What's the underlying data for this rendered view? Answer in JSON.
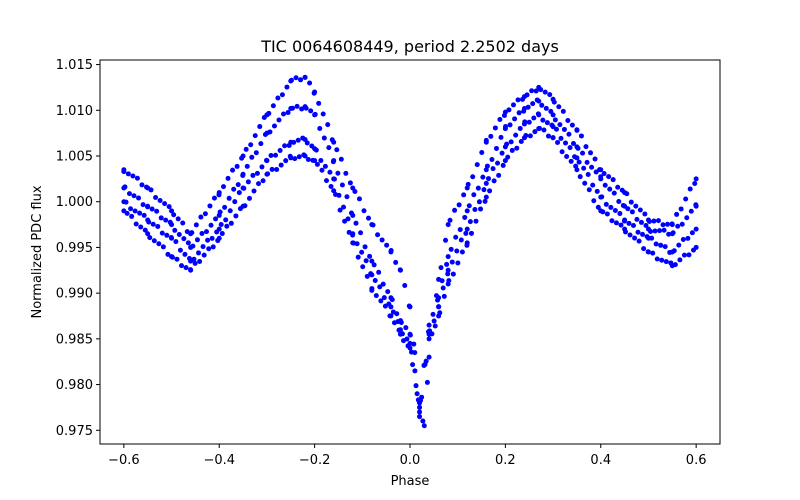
{
  "chart_data": {
    "type": "scatter",
    "title": "TIC 0064608449, period 2.2502 days",
    "xlabel": "Phase",
    "ylabel": "Normalized PDC flux",
    "xlim": [
      -0.65,
      0.65
    ],
    "ylim": [
      0.9735,
      1.0155
    ],
    "xticks": [
      -0.6,
      -0.4,
      -0.2,
      0.0,
      0.2,
      0.4,
      0.6
    ],
    "xtick_labels": [
      "−0.6",
      "−0.4",
      "−0.2",
      "0.0",
      "0.2",
      "0.4",
      "0.6"
    ],
    "yticks": [
      0.975,
      0.98,
      0.985,
      0.99,
      0.995,
      1.0,
      1.005,
      1.01,
      1.015
    ],
    "ytick_labels": [
      "0.975",
      "0.980",
      "0.985",
      "0.990",
      "0.995",
      "1.000",
      "1.005",
      "1.010",
      "1.015"
    ],
    "grid": false,
    "marker_color": "#0000ff",
    "series": [
      {
        "x": [
          -0.6,
          -0.55,
          -0.5,
          -0.46,
          -0.4,
          -0.35,
          -0.3,
          -0.25,
          -0.22,
          -0.2,
          -0.16,
          -0.12,
          -0.08,
          -0.04,
          -0.02,
          0.0,
          0.01,
          0.02,
          0.03,
          0.04,
          0.06,
          0.08,
          0.12,
          0.16,
          0.2,
          0.24,
          0.27,
          0.3,
          0.35,
          0.4,
          0.45,
          0.5,
          0.55,
          0.6
        ],
        "values": [
          1.0035,
          1.0015,
          0.999,
          0.9965,
          1.001,
          1.005,
          1.0095,
          1.0132,
          1.0136,
          1.012,
          1.0065,
          1.0015,
          0.9975,
          0.9945,
          0.9925,
          0.9885,
          0.9835,
          0.9765,
          0.9755,
          0.983,
          0.9915,
          0.9975,
          1.0015,
          1.0065,
          1.0098,
          1.0115,
          1.0125,
          1.0112,
          1.0078,
          1.0035,
          1.001,
          0.998,
          0.9975,
          1.0025
        ]
      },
      {
        "x": [
          -0.6,
          -0.55,
          -0.5,
          -0.46,
          -0.4,
          -0.35,
          -0.3,
          -0.25,
          -0.22,
          -0.2,
          -0.16,
          -0.12,
          -0.08,
          -0.04,
          -0.02,
          0.0,
          0.02,
          0.04,
          0.06,
          0.08,
          0.12,
          0.16,
          0.2,
          0.24,
          0.27,
          0.3,
          0.35,
          0.4,
          0.45,
          0.5,
          0.55,
          0.6
        ],
        "values": [
          1.0015,
          0.9995,
          0.9975,
          0.995,
          0.9985,
          1.003,
          1.0075,
          1.0102,
          1.0104,
          1.0095,
          1.0045,
          0.9985,
          0.9935,
          0.9895,
          0.987,
          0.9855,
          0.978,
          0.9865,
          0.9895,
          0.994,
          0.999,
          1.0035,
          1.008,
          1.0102,
          1.011,
          1.0095,
          1.006,
          1.0025,
          0.9995,
          0.997,
          0.9965,
          0.9995
        ]
      },
      {
        "x": [
          -0.6,
          -0.55,
          -0.5,
          -0.46,
          -0.4,
          -0.35,
          -0.3,
          -0.25,
          -0.22,
          -0.2,
          -0.16,
          -0.12,
          -0.08,
          -0.04,
          -0.02,
          0.0,
          0.02,
          0.04,
          0.06,
          0.08,
          0.12,
          0.16,
          0.2,
          0.24,
          0.27,
          0.3,
          0.35,
          0.4,
          0.45,
          0.5,
          0.55,
          0.6
        ],
        "values": [
          1.0,
          0.998,
          0.996,
          0.9935,
          0.997,
          1.0015,
          1.0045,
          1.0065,
          1.0068,
          1.0058,
          1.0025,
          0.9965,
          0.992,
          0.9885,
          0.986,
          0.9845,
          0.9775,
          0.9855,
          0.9885,
          0.9925,
          0.997,
          1.002,
          1.006,
          1.0085,
          1.0095,
          1.0082,
          1.0048,
          1.0005,
          0.998,
          0.996,
          0.9945,
          0.997
        ]
      },
      {
        "x": [
          -0.6,
          -0.55,
          -0.5,
          -0.46,
          -0.4,
          -0.35,
          -0.3,
          -0.25,
          -0.22,
          -0.2,
          -0.16,
          -0.12,
          -0.08,
          -0.04,
          -0.02,
          0.0,
          0.02,
          0.04,
          0.06,
          0.08,
          0.12,
          0.16,
          0.2,
          0.24,
          0.27,
          0.3,
          0.35,
          0.4,
          0.45,
          0.5,
          0.55,
          0.6
        ],
        "values": [
          0.999,
          0.9965,
          0.994,
          0.9925,
          0.996,
          0.9995,
          1.003,
          1.0048,
          1.005,
          1.0045,
          1.0012,
          0.9955,
          0.9905,
          0.9875,
          0.9855,
          0.984,
          0.977,
          0.985,
          0.9875,
          0.991,
          0.9955,
          1.0005,
          1.0045,
          1.007,
          1.008,
          1.007,
          1.0035,
          0.999,
          0.997,
          0.9945,
          0.993,
          0.995
        ]
      }
    ]
  }
}
